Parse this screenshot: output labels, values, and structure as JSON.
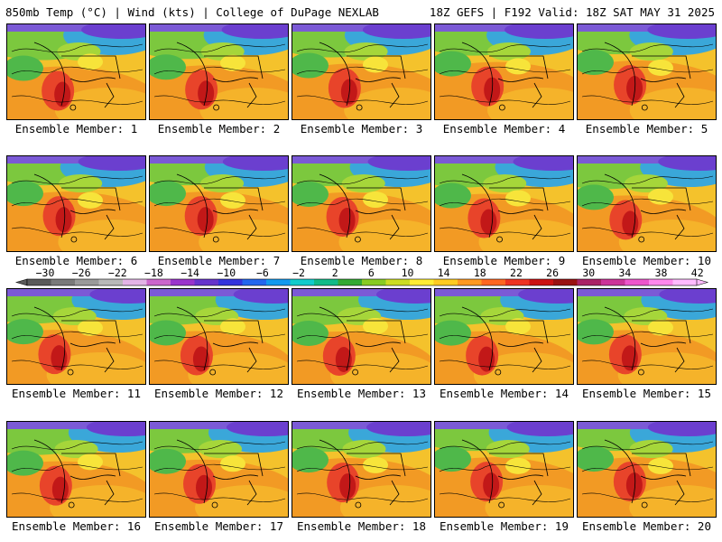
{
  "header": {
    "left": "850mb Temp (°C) | Wind (kts) | College of DuPage NEXLAB",
    "right": "18Z GEFS | F192 Valid: 18Z SAT MAY 31 2025"
  },
  "members": [
    "Ensemble Member: 1",
    "Ensemble Member: 2",
    "Ensemble Member: 3",
    "Ensemble Member: 4",
    "Ensemble Member: 5",
    "Ensemble Member: 6",
    "Ensemble Member: 7",
    "Ensemble Member: 8",
    "Ensemble Member: 9",
    "Ensemble Member: 10",
    "Ensemble Member: 11",
    "Ensemble Member: 12",
    "Ensemble Member: 13",
    "Ensemble Member: 14",
    "Ensemble Member: 15",
    "Ensemble Member: 16",
    "Ensemble Member: 17",
    "Ensemble Member: 18",
    "Ensemble Member: 19",
    "Ensemble Member: 20"
  ],
  "colorbar": {
    "labels": [
      "−30",
      "−26",
      "−22",
      "−18",
      "−14",
      "−10",
      "−6",
      "−2",
      "2",
      "6",
      "10",
      "14",
      "18",
      "22",
      "26",
      "30",
      "34",
      "38",
      "42"
    ],
    "colors": [
      "#5a5a5a",
      "#7a7a7a",
      "#9a9a9a",
      "#b9b9b9",
      "#e3b4e6",
      "#cc66cc",
      "#9a33cc",
      "#6633cc",
      "#3333dd",
      "#2266ee",
      "#1199ee",
      "#11cccc",
      "#11bb88",
      "#33aa33",
      "#88cc22",
      "#ccdd22",
      "#ffee33",
      "#ffcc22",
      "#ff9922",
      "#ff6622",
      "#ee3322",
      "#cc1111",
      "#991111",
      "#aa2266",
      "#cc3399",
      "#ee55cc",
      "#ff88ee",
      "#ffbbff"
    ]
  }
}
